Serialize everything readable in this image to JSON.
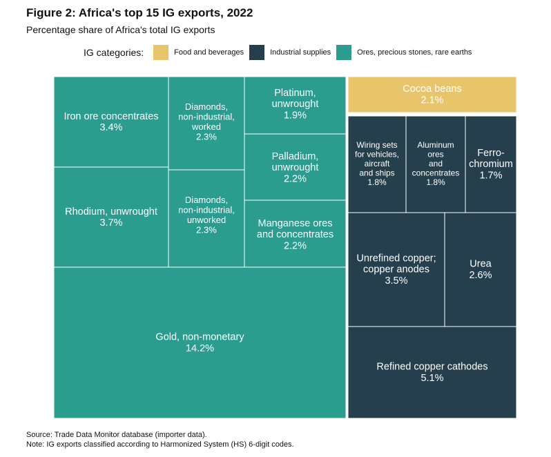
{
  "chart_data": {
    "type": "treemap",
    "title": "Figure 2: Africa's top 15 IG exports, 2022",
    "subtitle": "Percentage share of Africa's total IG exports",
    "legend_title": "IG categories:",
    "categories": [
      {
        "key": "food",
        "label": "Food and beverages",
        "color": "#E8C46A"
      },
      {
        "key": "industrial",
        "label": "Industrial supplies",
        "color": "#263F4D"
      },
      {
        "key": "ores",
        "label": "Ores, precious stones, rare earths",
        "color": "#2A9D8F"
      }
    ],
    "items": [
      {
        "label": "Gold, non-monetary",
        "value": 14.2,
        "display": "14.2%",
        "category": "ores"
      },
      {
        "label": "Rhodium, unwrought",
        "value": 3.7,
        "display": "3.7%",
        "category": "ores"
      },
      {
        "label": "Iron ore concentrates",
        "value": 3.4,
        "display": "3.4%",
        "category": "ores"
      },
      {
        "label": "Diamonds, non-industrial, worked",
        "value": 2.3,
        "display": "2.3%",
        "category": "ores"
      },
      {
        "label": "Diamonds, non-industrial, unworked",
        "value": 2.3,
        "display": "2.3%",
        "category": "ores"
      },
      {
        "label": "Palladium, unwrought",
        "value": 2.2,
        "display": "2.2%",
        "category": "ores"
      },
      {
        "label": "Manganese ores and concentrates",
        "value": 2.2,
        "display": "2.2%",
        "category": "ores"
      },
      {
        "label": "Platinum, unwrought",
        "value": 1.9,
        "display": "1.9%",
        "category": "ores"
      },
      {
        "label": "Cocoa beans",
        "value": 2.1,
        "display": "2.1%",
        "category": "food"
      },
      {
        "label": "Refined copper cathodes",
        "value": 5.1,
        "display": "5.1%",
        "category": "industrial"
      },
      {
        "label": "Unrefined copper; copper anodes",
        "value": 3.5,
        "display": "3.5%",
        "category": "industrial"
      },
      {
        "label": "Urea",
        "value": 2.6,
        "display": "2.6%",
        "category": "industrial"
      },
      {
        "label": "Wiring sets for vehicles, aircraft and ships",
        "value": 1.8,
        "display": "1.8%",
        "category": "industrial"
      },
      {
        "label": "Aluminum ores and concentrates",
        "value": 1.8,
        "display": "1.8%",
        "category": "industrial"
      },
      {
        "label": "Ferro-chromium",
        "value": 1.7,
        "display": "1.7%",
        "category": "industrial"
      }
    ]
  },
  "footer": {
    "source": "Source: Trade Data Monitor database (importer data).",
    "note": "Note: IG exports classified according to Harmonized System (HS) 6-digit codes."
  }
}
